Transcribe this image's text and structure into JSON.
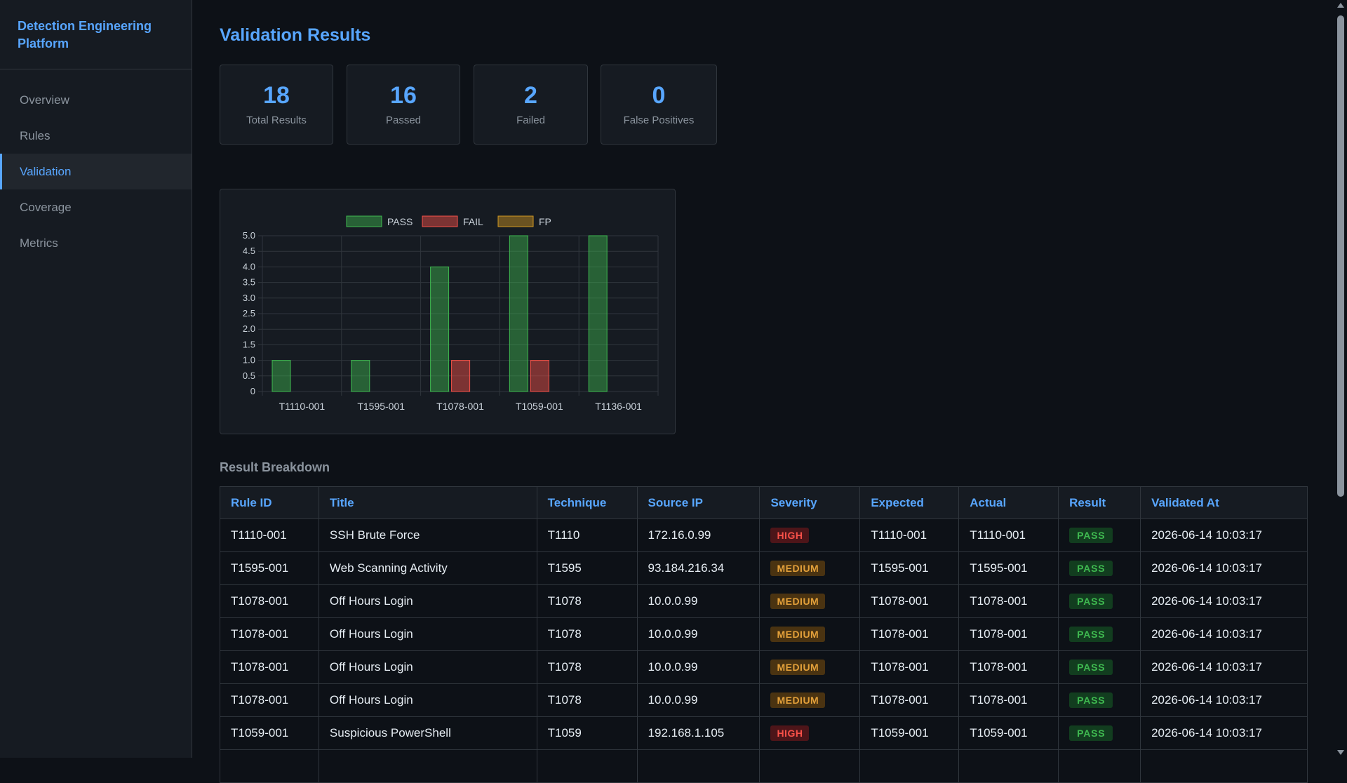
{
  "sidebar": {
    "brand": "Detection Engineering Platform",
    "items": [
      {
        "label": "Overview"
      },
      {
        "label": "Rules"
      },
      {
        "label": "Validation"
      },
      {
        "label": "Coverage"
      },
      {
        "label": "Metrics"
      }
    ],
    "active": "Validation"
  },
  "page": {
    "title": "Validation Results"
  },
  "stats": [
    {
      "value": "18",
      "label": "Total Results"
    },
    {
      "value": "16",
      "label": "Passed"
    },
    {
      "value": "2",
      "label": "Failed"
    },
    {
      "value": "0",
      "label": "False Positives"
    }
  ],
  "chart_data": {
    "type": "bar",
    "categories": [
      "T1110-001",
      "T1595-001",
      "T1078-001",
      "T1059-001",
      "T1136-001"
    ],
    "series": [
      {
        "name": "PASS",
        "values": [
          1,
          1,
          4,
          5,
          5
        ],
        "color": "#3fb950"
      },
      {
        "name": "FAIL",
        "values": [
          0,
          0,
          1,
          1,
          0
        ],
        "color": "#f85149"
      },
      {
        "name": "FP",
        "values": [
          0,
          0,
          0,
          0,
          0
        ],
        "color": "#d29922"
      }
    ],
    "ylim": [
      0,
      5
    ],
    "yticks": [
      "0",
      "0.5",
      "1.0",
      "1.5",
      "2.0",
      "2.5",
      "3.0",
      "3.5",
      "4.0",
      "4.5",
      "5.0"
    ],
    "legend": "top",
    "grid": true
  },
  "breakdown": {
    "title": "Result Breakdown",
    "columns": [
      "Rule ID",
      "Title",
      "Technique",
      "Source IP",
      "Severity",
      "Expected",
      "Actual",
      "Result",
      "Validated At"
    ],
    "rows": [
      {
        "rule_id": "T1110-001",
        "title": "SSH Brute Force",
        "technique": "T1110",
        "source_ip": "172.16.0.99",
        "severity": "HIGH",
        "expected": "T1110-001",
        "actual": "T1110-001",
        "result": "PASS",
        "validated_at": "2026-06-14 10:03:17"
      },
      {
        "rule_id": "T1595-001",
        "title": "Web Scanning Activity",
        "technique": "T1595",
        "source_ip": "93.184.216.34",
        "severity": "MEDIUM",
        "expected": "T1595-001",
        "actual": "T1595-001",
        "result": "PASS",
        "validated_at": "2026-06-14 10:03:17"
      },
      {
        "rule_id": "T1078-001",
        "title": "Off Hours Login",
        "technique": "T1078",
        "source_ip": "10.0.0.99",
        "severity": "MEDIUM",
        "expected": "T1078-001",
        "actual": "T1078-001",
        "result": "PASS",
        "validated_at": "2026-06-14 10:03:17"
      },
      {
        "rule_id": "T1078-001",
        "title": "Off Hours Login",
        "technique": "T1078",
        "source_ip": "10.0.0.99",
        "severity": "MEDIUM",
        "expected": "T1078-001",
        "actual": "T1078-001",
        "result": "PASS",
        "validated_at": "2026-06-14 10:03:17"
      },
      {
        "rule_id": "T1078-001",
        "title": "Off Hours Login",
        "technique": "T1078",
        "source_ip": "10.0.0.99",
        "severity": "MEDIUM",
        "expected": "T1078-001",
        "actual": "T1078-001",
        "result": "PASS",
        "validated_at": "2026-06-14 10:03:17"
      },
      {
        "rule_id": "T1078-001",
        "title": "Off Hours Login",
        "technique": "T1078",
        "source_ip": "10.0.0.99",
        "severity": "MEDIUM",
        "expected": "T1078-001",
        "actual": "T1078-001",
        "result": "PASS",
        "validated_at": "2026-06-14 10:03:17"
      },
      {
        "rule_id": "T1059-001",
        "title": "Suspicious PowerShell",
        "technique": "T1059",
        "source_ip": "192.168.1.105",
        "severity": "HIGH",
        "expected": "T1059-001",
        "actual": "T1059-001",
        "result": "PASS",
        "validated_at": "2026-06-14 10:03:17"
      }
    ]
  },
  "colors": {
    "accent": "#58a6ff",
    "pass": "#3fb950",
    "fail": "#f85149",
    "fp": "#d29922",
    "severity_high": "#f85149",
    "severity_medium": "#e3a03a"
  }
}
